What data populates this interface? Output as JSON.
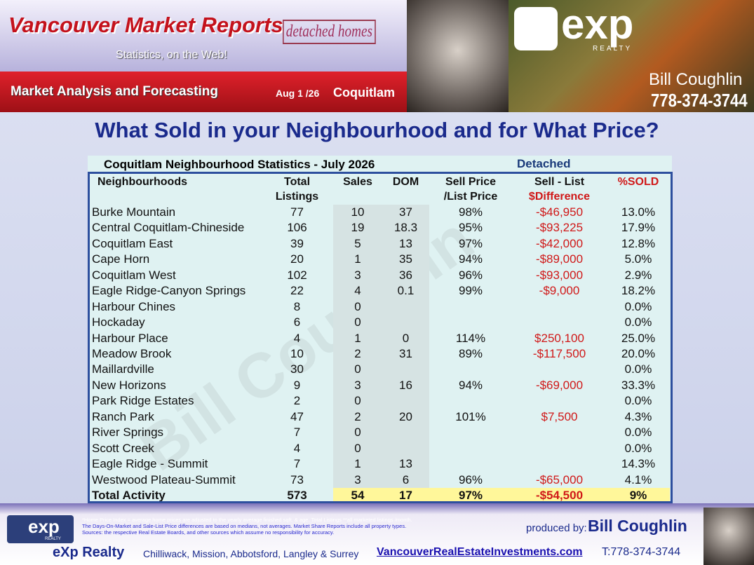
{
  "header": {
    "title": "Vancouver Market Reports",
    "badge": "detached homes",
    "tagline": "Statistics, on the Web!",
    "subtitle": "Market Analysis and Forecasting",
    "date": "Aug 1 /26",
    "area": "Coquitlam",
    "logo": "exp",
    "logo_sub": "REALTY",
    "name": "Bill Coughlin",
    "phone": "778-374-3744"
  },
  "headline": "What Sold in your Neighbourhood and for What Price?",
  "watermark": "Bill Coughlin",
  "table": {
    "title": "Coquitlam Neighbourhood Statistics - July  2026",
    "category": "Detached",
    "columns": [
      [
        "Neighbourhoods"
      ],
      [
        "Total",
        "Listings"
      ],
      [
        "Sales"
      ],
      [
        "DOM"
      ],
      [
        "Sell Price",
        "/List Price"
      ],
      [
        "Sell - List",
        "$Difference"
      ],
      [
        "%SOLD"
      ]
    ],
    "rows": [
      [
        "Burke Mountain",
        "77",
        "10",
        "37",
        "98%",
        "-$46,950",
        "13.0%"
      ],
      [
        "Central Coquitlam-Chineside",
        "106",
        "19",
        "18.3",
        "95%",
        "-$93,225",
        "17.9%"
      ],
      [
        "Coquitlam East",
        "39",
        "5",
        "13",
        "97%",
        "-$42,000",
        "12.8%"
      ],
      [
        "Cape Horn",
        "20",
        "1",
        "35",
        "94%",
        "-$89,000",
        "5.0%"
      ],
      [
        "Coquitlam West",
        "102",
        "3",
        "36",
        "96%",
        "-$93,000",
        "2.9%"
      ],
      [
        "Eagle Ridge-Canyon Springs",
        "22",
        "4",
        "0.1",
        "99%",
        "-$9,000",
        "18.2%"
      ],
      [
        "Harbour Chines",
        "8",
        "0",
        null,
        null,
        null,
        "0.0%"
      ],
      [
        "Hockaday",
        "6",
        "0",
        null,
        null,
        null,
        "0.0%"
      ],
      [
        "Harbour Place",
        "4",
        "1",
        "0",
        "114%",
        "$250,100",
        "25.0%"
      ],
      [
        "Meadow Brook",
        "10",
        "2",
        "31",
        "89%",
        "-$117,500",
        "20.0%"
      ],
      [
        "Maillardville",
        "30",
        "0",
        null,
        null,
        null,
        "0.0%"
      ],
      [
        "New Horizons",
        "9",
        "3",
        "16",
        "94%",
        "-$69,000",
        "33.3%"
      ],
      [
        "Park Ridge Estates",
        "2",
        "0",
        null,
        null,
        null,
        "0.0%"
      ],
      [
        "Ranch Park",
        "47",
        "2",
        "20",
        "101%",
        "$7,500",
        "4.3%"
      ],
      [
        "River Springs",
        "7",
        "0",
        null,
        null,
        null,
        "0.0%"
      ],
      [
        "Scott Creek",
        "4",
        "0",
        null,
        null,
        null,
        "0.0%"
      ],
      [
        "Eagle Ridge - Summit",
        "7",
        "1",
        "13",
        null,
        null,
        "14.3%"
      ],
      [
        "Westwood Plateau-Summit",
        "73",
        "3",
        "6",
        "96%",
        "-$65,000",
        "4.1%"
      ]
    ],
    "total": [
      "Total Activity",
      "573",
      "54",
      "17",
      "97%",
      "-$54,500",
      "9%"
    ]
  },
  "footer": {
    "notes": [
      "*Home Price Index = average home prices are adjusted to the yearly average finished sqft. & age.  Total Listings **all marketed listings /month.",
      "The Days-On-Market and Sale-List Price differences are based on medians, not averages. Market Share Reports include all property types.",
      "Sources:  the respective Real Estate Boards, and other sources which assume no responsibility for accuracy."
    ],
    "logo": "exp",
    "logo_sub": "REALTY",
    "produced_by_label": "produced by:",
    "producer": "Bill Coughlin",
    "company": "eXp Realty",
    "areas": "Chilliwack, Mission, Abbotsford, Langley & Surrey",
    "website": "VancouverRealEstateInvestments.com",
    "phone": "T:778-374-3744"
  }
}
